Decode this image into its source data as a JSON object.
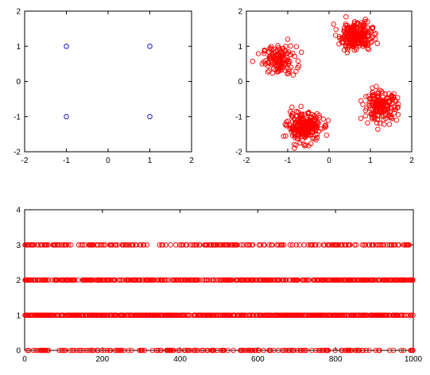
{
  "colors": {
    "series_a": "#0000cc",
    "series_b": "#ff0000",
    "axis": "#000000",
    "background": "#ffffff"
  },
  "chart_data": [
    {
      "type": "scatter",
      "xlim": [
        -2,
        2
      ],
      "ylim": [
        -2,
        2
      ],
      "x_ticks": [
        "-2",
        "-1",
        "0",
        "1",
        "2"
      ],
      "y_ticks": [
        "-2",
        "-1",
        "0",
        "1",
        "2"
      ],
      "grid": false,
      "legend": "none",
      "marker": "open-circle",
      "series": [
        {
          "color": "#0000cc",
          "points": [
            [
              -1,
              1
            ],
            [
              1,
              1
            ],
            [
              -1,
              -1
            ],
            [
              1,
              -1
            ]
          ]
        }
      ]
    },
    {
      "type": "scatter",
      "xlim": [
        -2,
        2
      ],
      "ylim": [
        -2,
        2
      ],
      "x_ticks": [
        "-2",
        "-1",
        "0",
        "1",
        "2"
      ],
      "y_ticks": [
        "-2",
        "-1",
        "0",
        "1",
        "2"
      ],
      "grid": false,
      "legend": "none",
      "marker": "open-circle",
      "clusters": [
        {
          "center": [
            -1.2,
            0.6
          ],
          "spread": 0.2,
          "count": 140
        },
        {
          "center": [
            0.65,
            1.3
          ],
          "spread": 0.2,
          "count": 240
        },
        {
          "center": [
            -0.6,
            -1.3
          ],
          "spread": 0.2,
          "count": 260
        },
        {
          "center": [
            1.25,
            -0.7
          ],
          "spread": 0.2,
          "count": 180
        }
      ],
      "series": [
        {
          "color": "#ff0000",
          "points": []
        }
      ]
    },
    {
      "type": "scatter",
      "xlim": [
        0,
        1000
      ],
      "ylim": [
        0,
        4
      ],
      "x_ticks": [
        "0",
        "200",
        "400",
        "600",
        "800",
        "1000"
      ],
      "y_ticks": [
        "0",
        "1",
        "2",
        "3",
        "4"
      ],
      "grid": false,
      "legend": "none",
      "marker": "open-circle",
      "levels": [
        0,
        1,
        2,
        3
      ],
      "level_density": [
        0.32,
        0.78,
        0.65,
        0.42
      ],
      "series": [
        {
          "color": "#ff0000",
          "points": []
        }
      ]
    }
  ]
}
